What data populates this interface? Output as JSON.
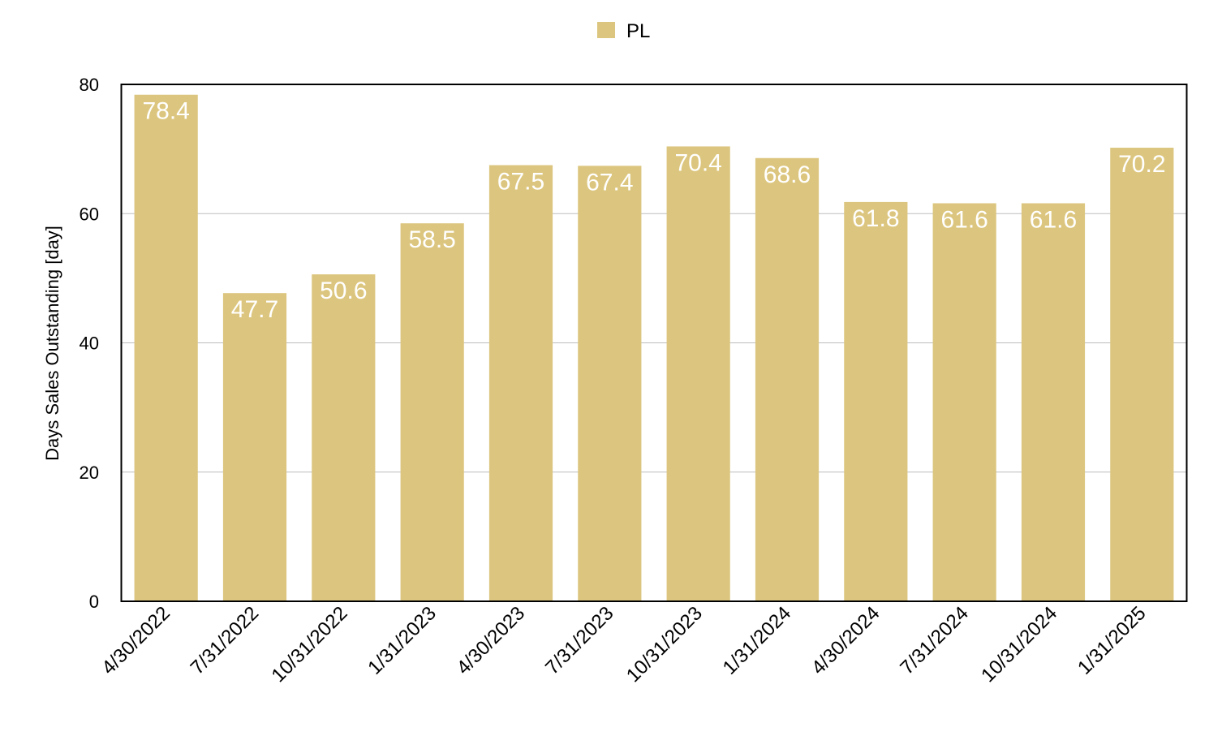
{
  "chart_data": {
    "type": "bar",
    "categories": [
      "4/30/2022",
      "7/31/2022",
      "10/31/2022",
      "1/31/2023",
      "4/30/2023",
      "7/31/2023",
      "10/31/2023",
      "1/31/2024",
      "4/30/2024",
      "7/31/2024",
      "10/31/2024",
      "1/31/2025"
    ],
    "series": [
      {
        "name": "PL",
        "values": [
          78.4,
          47.7,
          50.6,
          58.5,
          67.5,
          67.4,
          70.4,
          68.6,
          61.8,
          61.6,
          61.6,
          70.2
        ],
        "color": "#dcc67f"
      }
    ],
    "data_labels": [
      "78.4",
      "47.7",
      "50.6",
      "58.5",
      "67.5",
      "67.4",
      "70.4",
      "68.6",
      "61.8",
      "61.6",
      "61.6",
      "70.2"
    ],
    "ylabel": "Days Sales Outstanding [day]",
    "xlabel": "",
    "ylim": [
      0,
      80
    ],
    "yticks": [
      0,
      20,
      40,
      60,
      80
    ],
    "ytick_labels": [
      "0",
      "20",
      "40",
      "60",
      "80"
    ],
    "grid": true,
    "legend": {
      "position": "top-center",
      "entries": [
        "PL"
      ]
    },
    "colors": {
      "bar": "#dcc67f",
      "data_label": "#ffffff",
      "gridline": "#bdbdbd",
      "axis": "#000000"
    }
  }
}
